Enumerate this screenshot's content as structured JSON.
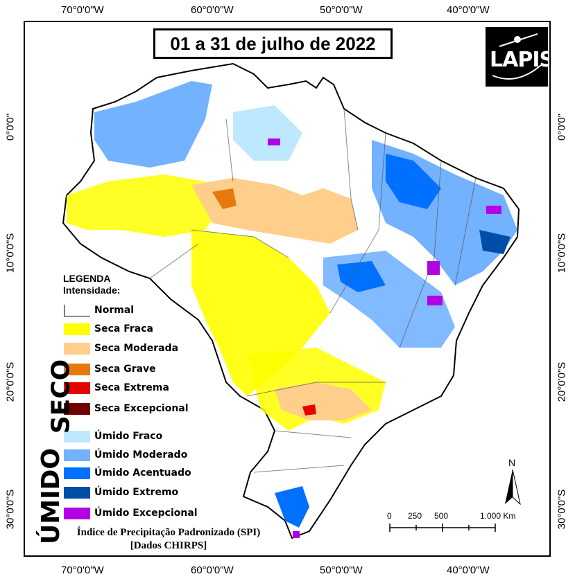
{
  "title": "01 a 31 de julho de 2022",
  "logo_text": "LAPIS",
  "coords": {
    "top": [
      "70°0'0\"W",
      "60°0'0\"W",
      "50°0'0\"W",
      "40°0'0\"W"
    ],
    "bottom": [
      "70°0'0\"W",
      "60°0'0\"W",
      "50°0'0\"W",
      "40°0'0\"W"
    ],
    "left": [
      "0°0'0\"",
      "10°0'0\"S",
      "20°0'0\"S",
      "30°0'0\"S"
    ],
    "right": [
      "0°0'0\"",
      "10°0'0\"S",
      "20°0'0\"S",
      "30°0'0\"S"
    ]
  },
  "legend": {
    "title": "LEGENDA",
    "subtitle": "Intensidade:",
    "seco_label": "SECO",
    "umido_label": "ÚMIDO",
    "items": [
      {
        "label": "Normal",
        "color": "#ffffff"
      },
      {
        "label": "Seca Fraca",
        "color": "#ffff00"
      },
      {
        "label": "Seca Moderada",
        "color": "#fdcf8a"
      },
      {
        "label": "Seca Grave",
        "color": "#e7790f"
      },
      {
        "label": "Seca Extrema",
        "color": "#e60000"
      },
      {
        "label": "Seca Excepcional",
        "color": "#730000"
      },
      {
        "label": "Úmido Fraco",
        "color": "#bee8ff"
      },
      {
        "label": "Úmido Moderado",
        "color": "#73b2ff"
      },
      {
        "label": "Úmido Acentuado",
        "color": "#0070ff"
      },
      {
        "label": "Úmido Extremo",
        "color": "#004da8"
      },
      {
        "label": "Úmido Excepcional",
        "color": "#b400e6"
      }
    ]
  },
  "caption": {
    "line1": "Índice de Precipitação Padronizado (SPI)",
    "line2": "[Dados CHIRPS]"
  },
  "scale": {
    "labels": [
      "0",
      "250",
      "500",
      "1.000 Km"
    ]
  },
  "north_label": "N"
}
